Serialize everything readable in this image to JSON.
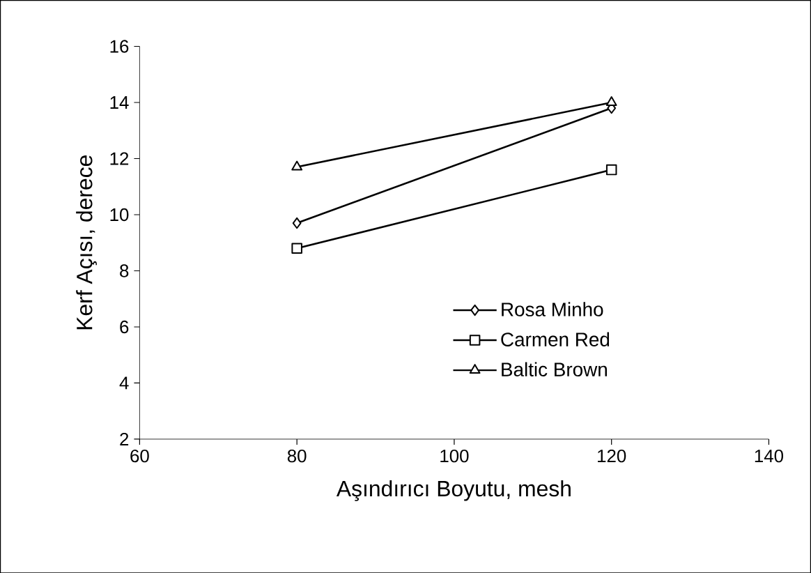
{
  "chart_data": {
    "type": "line",
    "xlabel": "Aşındırıcı Boyutu, mesh",
    "ylabel": "Kerf Açısı, derece",
    "x": [
      80,
      120
    ],
    "series": [
      {
        "name": "Rosa Minho",
        "color": "#000000",
        "marker": "diamond",
        "values": [
          9.7,
          13.8
        ]
      },
      {
        "name": "Carmen Red",
        "color": "#000000",
        "marker": "square",
        "values": [
          8.8,
          11.6
        ]
      },
      {
        "name": "Baltic Brown",
        "color": "#000000",
        "marker": "triangle",
        "values": [
          11.7,
          14.0
        ]
      }
    ],
    "xlim": [
      60,
      140
    ],
    "xticks": [
      60,
      80,
      100,
      120,
      140
    ],
    "ylim": [
      2,
      16
    ],
    "yticks": [
      2,
      4,
      6,
      8,
      10,
      12,
      14,
      16
    ],
    "grid": false,
    "legend": "right",
    "line_style": "solid"
  }
}
